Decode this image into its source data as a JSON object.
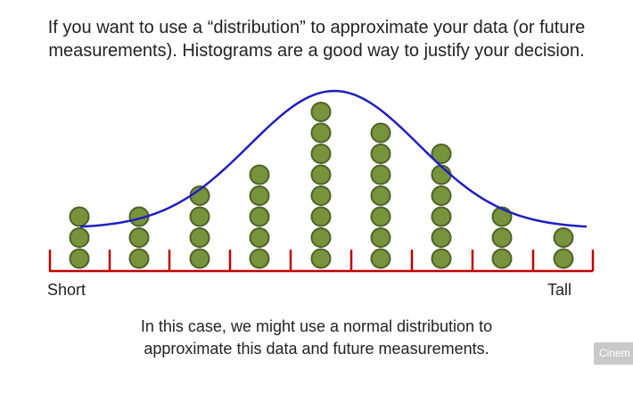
{
  "slide": {
    "top_text_line1": "If you want to use a “distribution” to approximate your data (or future",
    "top_text_line2": "measurements). Histograms are a good way to justify your decision.",
    "bottom_text_line1": "In this case, we might use a normal distribution to",
    "bottom_text_line2": "approximate this data and future measurements.",
    "watermark_text": "Cinem"
  },
  "diagram": {
    "left_label": "Short",
    "right_label": "Tall",
    "bin_counts": [
      3,
      3,
      4,
      5,
      8,
      7,
      6,
      3,
      2
    ],
    "colors": {
      "dot_fill": "#77933c",
      "dot_stroke": "#4f6228",
      "axis": "#c00000",
      "curve": "#1f1fbf"
    }
  }
}
